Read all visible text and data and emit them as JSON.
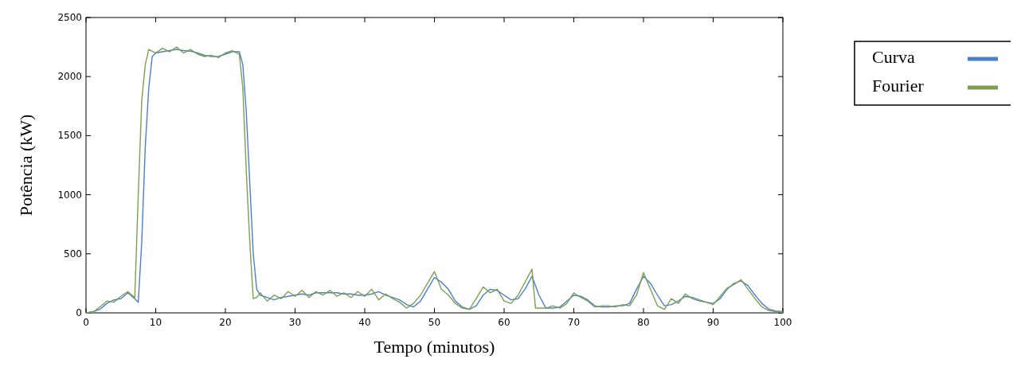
{
  "chart_data": {
    "type": "line",
    "xlabel": "Tempo (minutos)",
    "ylabel": "Potência (kW)",
    "xlim": [
      0,
      100
    ],
    "xticks": [
      0,
      10,
      20,
      30,
      40,
      50,
      60,
      70,
      80,
      90,
      100
    ],
    "ylim": [
      0,
      2500
    ],
    "yticks": [
      0,
      500,
      1000,
      1500,
      2000,
      2500
    ],
    "grid": false,
    "legend": "right",
    "line_style": "solid",
    "marker": "none",
    "series": [
      {
        "name": "Curva",
        "color": "#4a7fd0",
        "x": [
          0,
          1,
          2,
          3,
          4,
          5,
          6,
          7,
          7.5,
          8,
          8.5,
          9,
          9.5,
          10,
          11,
          12,
          13,
          14,
          15,
          16,
          17,
          18,
          19,
          20,
          21,
          22,
          22.5,
          23,
          23.5,
          24,
          24.5,
          25,
          26,
          27,
          28,
          29,
          30,
          31,
          32,
          33,
          34,
          35,
          36,
          37,
          38,
          39,
          40,
          41,
          42,
          43,
          44,
          45,
          46,
          47,
          48,
          49,
          50,
          51,
          52,
          53,
          54,
          55,
          56,
          57,
          58,
          59,
          60,
          61,
          62,
          63,
          64,
          65,
          66,
          67,
          68,
          69,
          70,
          71,
          72,
          73,
          74,
          75,
          76,
          77,
          78,
          79,
          80,
          81,
          82,
          83,
          84,
          85,
          86,
          87,
          88,
          89,
          90,
          91,
          92,
          93,
          94,
          95,
          96,
          97,
          98,
          99,
          100
        ],
        "values": [
          0,
          10,
          30,
          80,
          110,
          120,
          170,
          120,
          90,
          600,
          1400,
          1900,
          2170,
          2200,
          2210,
          2220,
          2230,
          2220,
          2215,
          2200,
          2180,
          2170,
          2170,
          2190,
          2210,
          2210,
          2100,
          1700,
          1100,
          500,
          200,
          150,
          130,
          110,
          130,
          140,
          150,
          160,
          150,
          170,
          170,
          170,
          170,
          160,
          160,
          150,
          150,
          160,
          180,
          150,
          130,
          110,
          70,
          50,
          100,
          200,
          300,
          260,
          200,
          100,
          50,
          30,
          60,
          150,
          200,
          190,
          150,
          110,
          120,
          200,
          310,
          150,
          40,
          40,
          50,
          100,
          150,
          140,
          110,
          60,
          50,
          50,
          60,
          60,
          80,
          200,
          310,
          250,
          150,
          60,
          70,
          100,
          140,
          130,
          110,
          90,
          80,
          120,
          200,
          250,
          270,
          230,
          150,
          80,
          30,
          15,
          10
        ]
      },
      {
        "name": "Fourier",
        "color": "#7f9f4f",
        "x": [
          0,
          1,
          2,
          3,
          4,
          5,
          6,
          7,
          7.5,
          8,
          8.5,
          9,
          10,
          11,
          12,
          13,
          14,
          15,
          16,
          17,
          18,
          19,
          20,
          21,
          22,
          22.5,
          23,
          23.5,
          24,
          24.5,
          25,
          26,
          27,
          28,
          29,
          30,
          31,
          32,
          33,
          34,
          35,
          36,
          37,
          38,
          39,
          40,
          41,
          42,
          43,
          44,
          45,
          46,
          47,
          48,
          49,
          50,
          51,
          52,
          53,
          54,
          55,
          56,
          57,
          58,
          59,
          60,
          61,
          62,
          63,
          64,
          64.5,
          65,
          66,
          67,
          68,
          69,
          70,
          71,
          72,
          73,
          74,
          75,
          76,
          77,
          78,
          79,
          80,
          81,
          82,
          83,
          84,
          85,
          86,
          87,
          88,
          89,
          90,
          91,
          92,
          93,
          94,
          95,
          96,
          97,
          98,
          99,
          100
        ],
        "values": [
          0,
          5,
          50,
          100,
          90,
          140,
          180,
          130,
          1000,
          1800,
          2100,
          2230,
          2200,
          2240,
          2210,
          2250,
          2200,
          2230,
          2190,
          2170,
          2180,
          2160,
          2200,
          2220,
          2190,
          1900,
          1200,
          600,
          120,
          130,
          170,
          100,
          150,
          120,
          180,
          140,
          190,
          130,
          180,
          150,
          190,
          140,
          170,
          130,
          180,
          140,
          200,
          110,
          160,
          120,
          90,
          40,
          80,
          150,
          250,
          350,
          200,
          150,
          80,
          40,
          30,
          120,
          220,
          170,
          200,
          100,
          80,
          150,
          260,
          370,
          40,
          40,
          40,
          60,
          40,
          80,
          170,
          130,
          100,
          50,
          60,
          60,
          50,
          70,
          60,
          150,
          340,
          200,
          60,
          30,
          120,
          80,
          160,
          120,
          100,
          90,
          70,
          140,
          210,
          240,
          280,
          200,
          120,
          50,
          20,
          10,
          5
        ]
      }
    ]
  }
}
